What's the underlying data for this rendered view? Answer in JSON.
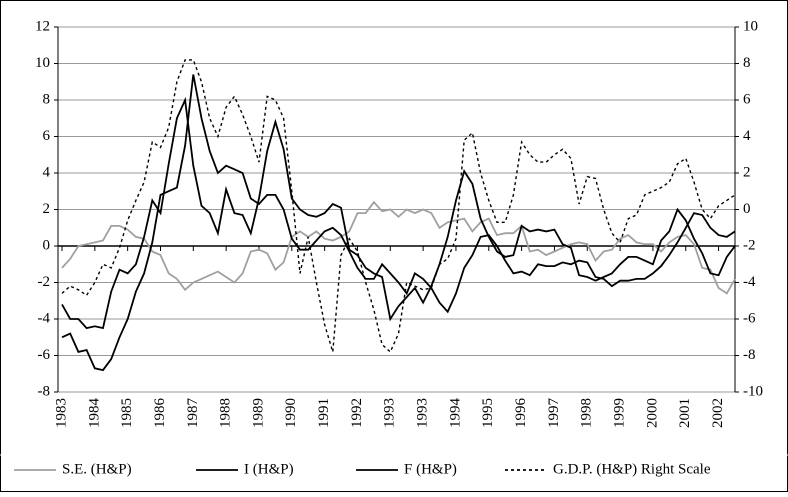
{
  "chart_data": {
    "type": "line",
    "categories": [
      "1983",
      null,
      null,
      null,
      "1984",
      null,
      null,
      null,
      "1985",
      null,
      null,
      null,
      "1986",
      null,
      null,
      null,
      "1987",
      null,
      null,
      null,
      "1988",
      null,
      null,
      null,
      "1989",
      null,
      null,
      null,
      "1990",
      null,
      null,
      null,
      "1991",
      null,
      null,
      null,
      "1992",
      null,
      null,
      null,
      "1993",
      null,
      null,
      null,
      "1993",
      null,
      null,
      null,
      "1994",
      null,
      null,
      null,
      "1995",
      null,
      null,
      null,
      "1996",
      null,
      null,
      null,
      "1997",
      null,
      null,
      null,
      "1998",
      null,
      null,
      null,
      "1999",
      null,
      null,
      null,
      "2000",
      null,
      null,
      null,
      "2001",
      null,
      null,
      null,
      "2002",
      null,
      null
    ],
    "series": [
      {
        "name": "S.E. (H&P)",
        "color": "#a0a0a0",
        "style": "solid",
        "values": [
          -1.2,
          -0.7,
          0,
          0.1,
          0.2,
          0.3,
          1.1,
          1.1,
          0.9,
          0.5,
          0.4,
          -0.3,
          -0.5,
          -1.5,
          -1.8,
          -2.4,
          -2.0,
          -1.8,
          -1.6,
          -1.4,
          -1.7,
          -2.0,
          -1.5,
          -0.3,
          -0.2,
          -0.4,
          -1.3,
          -0.9,
          0.5,
          0.8,
          0.5,
          0.8,
          0.4,
          0.3,
          0.5,
          0.8,
          1.8,
          1.8,
          2.4,
          1.9,
          2.0,
          1.6,
          2.0,
          1.8,
          2.0,
          1.8,
          1.0,
          1.3,
          1.4,
          1.5,
          0.8,
          1.3,
          1.5,
          0.6,
          0.7,
          0.7,
          1.1,
          -0.3,
          -0.2,
          -0.5,
          -0.3,
          -0.1,
          0.1,
          0.2,
          0.1,
          -0.8,
          -0.3,
          -0.2,
          0.4,
          0.6,
          0.2,
          0.1,
          0.1,
          -0.3,
          0.2,
          0.5,
          0.6,
          0.1,
          -1.2,
          -1.3,
          -2.3,
          -2.6,
          -1.8
        ]
      },
      {
        "name": "I (H&P)",
        "color": "#000000",
        "style": "solid",
        "values": [
          -5,
          -4.8,
          -5.8,
          -5.7,
          -6.7,
          -6.8,
          -6.2,
          -5,
          -4,
          -2.5,
          -1.5,
          0.2,
          2.8,
          3.0,
          3.2,
          5.5,
          9.4,
          7,
          5.2,
          4.0,
          4.4,
          4.2,
          4,
          2.6,
          2.3,
          2.8,
          2.8,
          2.0,
          0.4,
          -0.2,
          -0.2,
          0.3,
          0.8,
          1.0,
          0.6,
          -0.3,
          -1.2,
          -1.8,
          -1.8,
          -1.0,
          -1.5,
          -2,
          -2.6,
          -1.5,
          -1.8,
          -2.3,
          -3.1,
          -3.6,
          -2.6,
          -1.2,
          -0.5,
          0.5,
          0.6,
          0,
          -0.8,
          -1.5,
          -1.4,
          -1.6,
          -1,
          -1.1,
          -1.1,
          -0.9,
          -1.0,
          -0.8,
          -0.9,
          -1.7,
          -1.8,
          -2.2,
          -1.9,
          -1.9,
          -1.8,
          -1.8,
          -1.5,
          -1.1,
          -0.5,
          0.2,
          1.0,
          1.8,
          1.7,
          1.0,
          0.6,
          0.5,
          0.8
        ]
      },
      {
        "name": "F (H&P)",
        "color": "#000000",
        "style": "solid",
        "values": [
          -3.2,
          -4,
          -4,
          -4.5,
          -4.4,
          -4.5,
          -2.5,
          -1.3,
          -1.5,
          -1,
          0.5,
          2.5,
          1.8,
          4.5,
          7,
          8,
          4.4,
          2.2,
          1.8,
          0.7,
          3.1,
          1.8,
          1.7,
          0.7,
          2.6,
          5.2,
          6.8,
          5.3,
          2.6,
          2,
          1.7,
          1.6,
          1.8,
          2.3,
          2.1,
          -0.2,
          -0.5,
          -1.2,
          -1.5,
          -1.7,
          -4,
          -3.3,
          -2.8,
          -2.3,
          -3.1,
          -2.2,
          -1.0,
          0.5,
          2.5,
          4.1,
          3.4,
          1.5,
          0.5,
          -0.3,
          -0.6,
          -0.5,
          1.1,
          0.8,
          0.9,
          0.8,
          0.9,
          0.1,
          -0.1,
          -1.6,
          -1.7,
          -1.9,
          -1.7,
          -1.5,
          -1,
          -0.6,
          -0.6,
          -0.8,
          -1,
          0.3,
          0.8,
          2.0,
          1.4,
          0.4,
          -0.4,
          -1.5,
          -1.6,
          -0.6,
          0
        ]
      },
      {
        "name": "G.D.P. (H&P) Right Scale",
        "color": "#000000",
        "style": "dotted",
        "axis": "y2",
        "values": [
          -4.6,
          -4.2,
          -4.4,
          -4.7,
          -4,
          -3,
          -3.2,
          -2.1,
          -0.6,
          0.5,
          1.5,
          3.7,
          3.4,
          4.5,
          7,
          8.2,
          8.2,
          7,
          5,
          4,
          5.6,
          6.2,
          5.2,
          4,
          2.6,
          6.2,
          6,
          5,
          1,
          -3.5,
          -1.5,
          -4,
          -6.3,
          -7.8,
          -2.5,
          -1.6,
          -2.3,
          -4,
          -5.5,
          -7.4,
          -7.8,
          -6.8,
          -4,
          -4.2,
          -4.4,
          -4.3,
          -3,
          -2.7,
          -1.6,
          3.8,
          4.2,
          2,
          0.5,
          -0.7,
          -0.7,
          0.8,
          3.7,
          3,
          2.6,
          2.6,
          3,
          3.3,
          2.8,
          0.3,
          1.8,
          1.7,
          0,
          -1.3,
          -1.8,
          -0.5,
          -0.3,
          0.8,
          1,
          1.2,
          1.5,
          2.5,
          2.8,
          1.5,
          0,
          -0.5,
          0.2,
          0.5,
          0.8
        ]
      }
    ],
    "ylim": [
      -8,
      12
    ],
    "yticks": [
      -8,
      -6,
      -4,
      -2,
      0,
      2,
      4,
      6,
      8,
      10,
      12
    ],
    "y2lim": [
      -10,
      10
    ],
    "y2ticks": [
      -10,
      -8,
      -6,
      -4,
      -2,
      0,
      2,
      4,
      6,
      8,
      10
    ],
    "grid": true,
    "legend": "bottom"
  }
}
